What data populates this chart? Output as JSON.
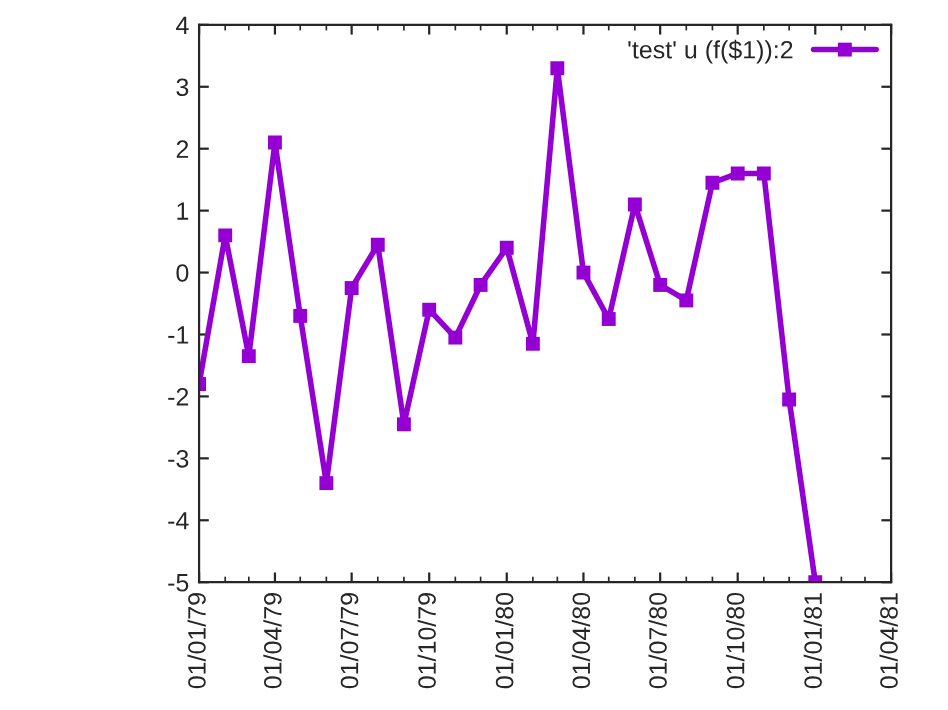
{
  "chart_data": {
    "type": "line",
    "x": [
      "1979-01-01",
      "1979-02-01",
      "1979-03-01",
      "1979-04-01",
      "1979-05-01",
      "1979-06-01",
      "1979-07-01",
      "1979-08-01",
      "1979-09-01",
      "1979-10-01",
      "1979-11-01",
      "1979-12-01",
      "1980-01-01",
      "1980-02-01",
      "1980-03-01",
      "1980-04-01",
      "1980-05-01",
      "1980-06-01",
      "1980-07-01",
      "1980-08-01",
      "1980-09-01",
      "1980-10-01",
      "1980-11-01",
      "1980-12-01",
      "1981-01-01"
    ],
    "series": [
      {
        "name": "'test' u (f($1)):2",
        "color": "#9400d3",
        "values": [
          -1.8,
          0.6,
          -1.35,
          2.1,
          -0.7,
          -3.4,
          -0.25,
          0.45,
          -2.45,
          -0.6,
          -1.05,
          -0.2,
          0.4,
          -1.15,
          3.3,
          0.0,
          -0.75,
          1.1,
          -0.2,
          -0.45,
          1.45,
          1.6,
          1.6,
          -2.05,
          -5
        ]
      }
    ],
    "xlim": [
      "1979-01-01",
      "1981-04-01"
    ],
    "xticks": [
      {
        "value": "1979-01-01",
        "label": "01/01/79"
      },
      {
        "value": "1979-04-01",
        "label": "01/04/79"
      },
      {
        "value": "1979-07-01",
        "label": "01/07/79"
      },
      {
        "value": "1979-10-01",
        "label": "01/10/79"
      },
      {
        "value": "1980-01-01",
        "label": "01/01/80"
      },
      {
        "value": "1980-04-01",
        "label": "01/04/80"
      },
      {
        "value": "1980-07-01",
        "label": "01/07/80"
      },
      {
        "value": "1980-10-01",
        "label": "01/10/80"
      },
      {
        "value": "1981-01-01",
        "label": "01/01/81"
      },
      {
        "value": "1981-04-01",
        "label": "01/04/81"
      }
    ],
    "ylim": [
      -5,
      4
    ],
    "yticks": [
      -5,
      -4,
      -3,
      -2,
      -1,
      0,
      1,
      2,
      3,
      4
    ],
    "grid": false,
    "legend": "top right",
    "marker": "square",
    "line_style": "solid"
  }
}
